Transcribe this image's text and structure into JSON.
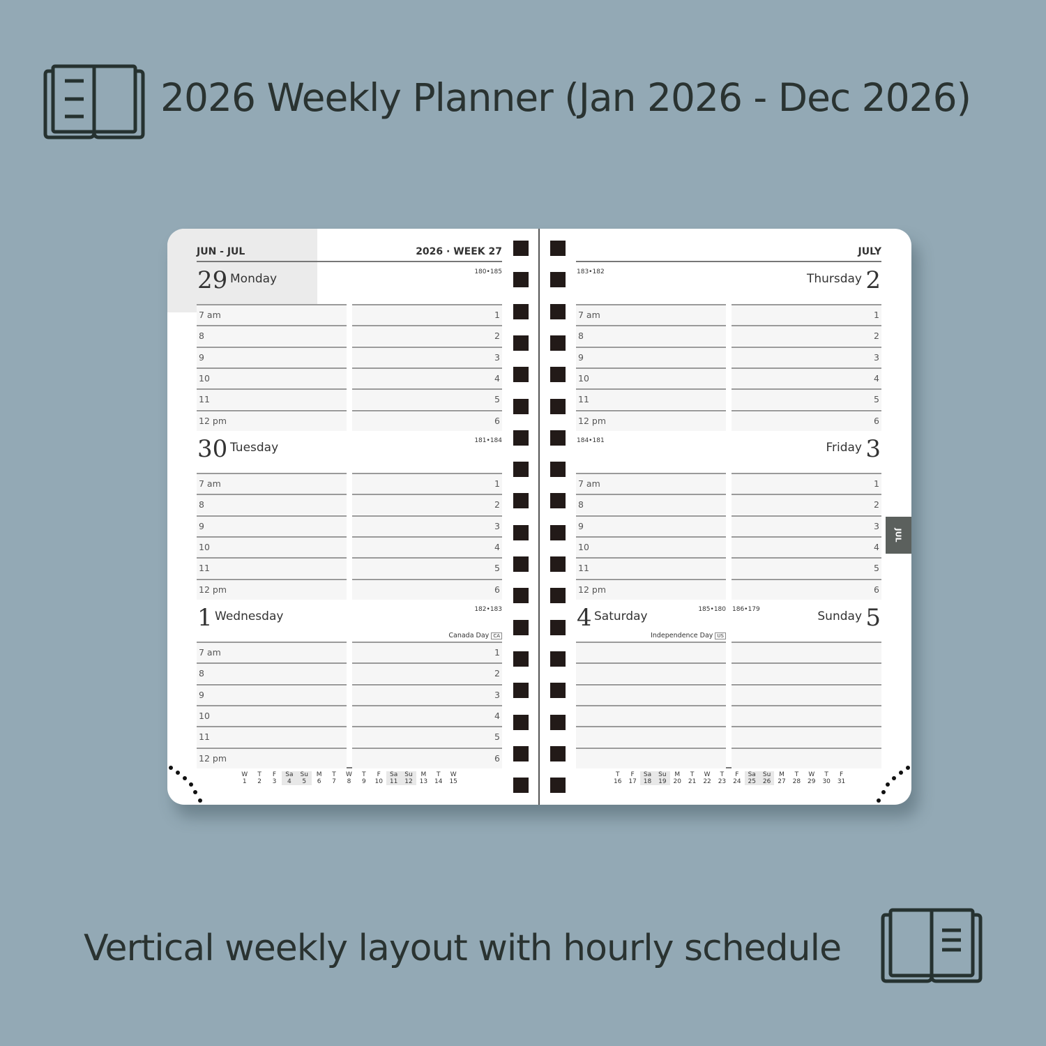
{
  "title": "2026 Weekly Planner (Jan 2026 - Dec 2026)",
  "subtitle": "Vertical weekly layout with hourly schedule",
  "icons": {
    "top": "open-book-icon",
    "bottom": "open-book-icon"
  },
  "colors": {
    "background": "#93a9b5",
    "text": "#2a3331",
    "weekend_shade": "#ebebeb",
    "tab": "#5b605d"
  },
  "planner": {
    "left_header": "JUN - JUL",
    "left_week": "2026 · WEEK 27",
    "right_header": "JULY",
    "month_tab": "JUL",
    "hours_left": [
      "7 am",
      "8",
      "9",
      "10",
      "11",
      "12 pm"
    ],
    "hours_right": [
      "1",
      "2",
      "3",
      "4",
      "5",
      "6"
    ],
    "days": [
      {
        "num": "29",
        "name": "Monday",
        "doy": "180•185",
        "holiday": "",
        "badge": ""
      },
      {
        "num": "30",
        "name": "Tuesday",
        "doy": "181•184",
        "holiday": "",
        "badge": ""
      },
      {
        "num": "1",
        "name": "Wednesday",
        "doy": "182•183",
        "holiday": "Canada Day",
        "badge": "CA"
      },
      {
        "num": "2",
        "name": "Thursday",
        "doy": "183•182",
        "holiday": "",
        "badge": ""
      },
      {
        "num": "3",
        "name": "Friday",
        "doy": "184•181",
        "holiday": "",
        "badge": ""
      },
      {
        "num": "4",
        "name": "Saturday",
        "doy": "185•180",
        "holiday": "Independence Day",
        "badge": "US"
      },
      {
        "num": "5",
        "name": "Sunday",
        "doy": "186•179",
        "holiday": "",
        "badge": ""
      }
    ],
    "mini_left": [
      [
        "W",
        "1"
      ],
      [
        "T",
        "2"
      ],
      [
        "F",
        "3"
      ],
      [
        "Sa",
        "4"
      ],
      [
        "Su",
        "5"
      ],
      [
        "M",
        "6"
      ],
      [
        "T",
        "7"
      ],
      [
        "W",
        "8"
      ],
      [
        "T",
        "9"
      ],
      [
        "F",
        "10"
      ],
      [
        "Sa",
        "11"
      ],
      [
        "Su",
        "12"
      ],
      [
        "M",
        "13"
      ],
      [
        "T",
        "14"
      ],
      [
        "W",
        "15"
      ]
    ],
    "mini_right": [
      [
        "T",
        "16"
      ],
      [
        "F",
        "17"
      ],
      [
        "Sa",
        "18"
      ],
      [
        "Su",
        "19"
      ],
      [
        "M",
        "20"
      ],
      [
        "T",
        "21"
      ],
      [
        "W",
        "22"
      ],
      [
        "T",
        "23"
      ],
      [
        "F",
        "24"
      ],
      [
        "Sa",
        "25"
      ],
      [
        "Su",
        "26"
      ],
      [
        "M",
        "27"
      ],
      [
        "T",
        "28"
      ],
      [
        "W",
        "29"
      ],
      [
        "T",
        "30"
      ],
      [
        "F",
        "31"
      ]
    ]
  }
}
